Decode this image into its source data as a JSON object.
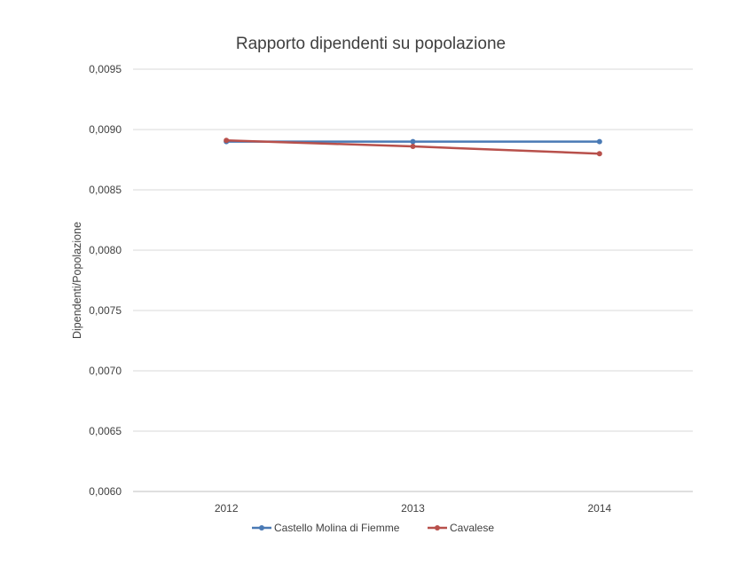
{
  "chart_data": {
    "type": "line",
    "title": "Rapporto dipendenti su popolazione",
    "xlabel": "",
    "ylabel": "Dipendenti/Popolazione",
    "categories": [
      "2012",
      "2013",
      "2014"
    ],
    "y_ticks": [
      "0,0060",
      "0,0065",
      "0,0070",
      "0,0075",
      "0,0080",
      "0,0085",
      "0,0090",
      "0,0095"
    ],
    "ylim": [
      0.006,
      0.0095
    ],
    "grid": true,
    "legend_position": "bottom",
    "series": [
      {
        "name": "Castello Molina di Fiemme",
        "color": "#4a7ab5",
        "values": [
          0.0089,
          0.0089,
          0.0089
        ]
      },
      {
        "name": "Cavalese",
        "color": "#b8504b",
        "values": [
          0.00891,
          0.00886,
          0.0088
        ]
      }
    ]
  }
}
